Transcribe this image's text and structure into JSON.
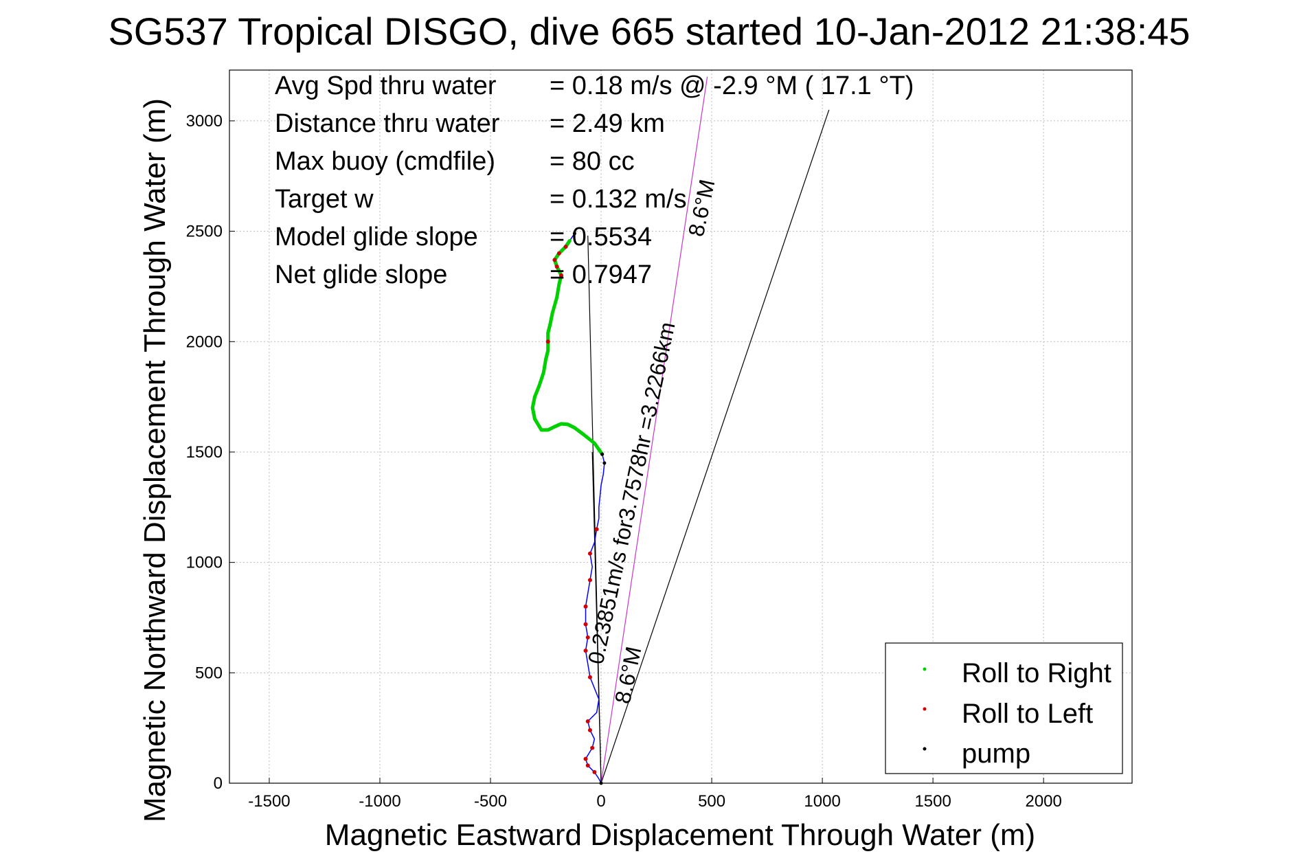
{
  "chart_data": {
    "type": "scatter",
    "title": "SG537 Tropical DISGO, dive 665 started 10-Jan-2012 21:38:45",
    "xlabel": "Magnetic Eastward Displacement Through Water (m)",
    "ylabel": "Magnetic Northward Displacement Through Water (m)",
    "xlim": [
      -1680,
      2400
    ],
    "ylim": [
      0,
      3230
    ],
    "xticks": [
      -1500,
      -1000,
      -500,
      0,
      500,
      1000,
      1500,
      2000
    ],
    "yticks": [
      0,
      500,
      1000,
      1500,
      2000,
      2500,
      3000
    ],
    "grid": true,
    "legend_position": "bottom-right",
    "colors": {
      "roll_right": "#00d000",
      "roll_left": "#d00000",
      "pump": "#000000",
      "track": "#0000ff",
      "heading_line": "#cc33cc",
      "reference_line": "#000000"
    },
    "summary_stats": [
      {
        "label": "Avg Spd thru water",
        "value": "=  0.18 m/s @  -2.9 °M ( 17.1 °T)"
      },
      {
        "label": "Distance thru water",
        "value": "=  2.49 km"
      },
      {
        "label": "Max buoy (cmdfile)",
        "value": "= 80 cc"
      },
      {
        "label": "Target w",
        "value": "= 0.132 m/s"
      },
      {
        "label": "Model glide slope",
        "value": "= 0.5534"
      },
      {
        "label": "Net glide slope",
        "value": "= 0.7947"
      }
    ],
    "annotations": {
      "vector_text": "0.23851m/s for3.7578hr =3.2266km",
      "heading_low": "8.6°M",
      "heading_high": "8.6°M"
    },
    "legend": [
      {
        "label": "Roll to Right",
        "color": "#00d000"
      },
      {
        "label": "Roll to Left",
        "color": "#d00000"
      },
      {
        "label": "pump",
        "color": "#000000"
      }
    ],
    "series": [
      {
        "name": "track",
        "points": [
          [
            0,
            0
          ],
          [
            -10,
            20
          ],
          [
            -30,
            50
          ],
          [
            -60,
            80
          ],
          [
            -70,
            110
          ],
          [
            -40,
            160
          ],
          [
            -30,
            200
          ],
          [
            -50,
            240
          ],
          [
            -60,
            280
          ],
          [
            -20,
            320
          ],
          [
            -10,
            380
          ],
          [
            -30,
            430
          ],
          [
            -50,
            480
          ],
          [
            -60,
            540
          ],
          [
            -70,
            600
          ],
          [
            -60,
            660
          ],
          [
            -70,
            720
          ],
          [
            -70,
            800
          ],
          [
            -60,
            860
          ],
          [
            -50,
            920
          ],
          [
            -40,
            980
          ],
          [
            -50,
            1040
          ],
          [
            -30,
            1090
          ],
          [
            -20,
            1150
          ],
          [
            -10,
            1200
          ],
          [
            -10,
            1250
          ],
          [
            -5,
            1300
          ],
          [
            0,
            1350
          ],
          [
            10,
            1400
          ],
          [
            15,
            1450
          ],
          [
            5,
            1490
          ],
          [
            -30,
            1540
          ],
          [
            -80,
            1580
          ],
          [
            -120,
            1610
          ],
          [
            -150,
            1625
          ],
          [
            -180,
            1628
          ],
          [
            -210,
            1615
          ],
          [
            -240,
            1600
          ],
          [
            -270,
            1600
          ],
          [
            -300,
            1650
          ],
          [
            -310,
            1700
          ],
          [
            -300,
            1750
          ],
          [
            -280,
            1800
          ],
          [
            -260,
            1860
          ],
          [
            -250,
            1920
          ],
          [
            -240,
            1960
          ],
          [
            -240,
            2000
          ],
          [
            -240,
            2040
          ],
          [
            -230,
            2080
          ],
          [
            -220,
            2130
          ],
          [
            -200,
            2200
          ],
          [
            -190,
            2260
          ],
          [
            -180,
            2300
          ],
          [
            -200,
            2340
          ],
          [
            -210,
            2370
          ],
          [
            -190,
            2400
          ],
          [
            -160,
            2430
          ],
          [
            -140,
            2460
          ],
          [
            -120,
            2490
          ]
        ]
      },
      {
        "name": "Roll to Right",
        "ranges": [
          [
            30,
            57
          ]
        ]
      },
      {
        "name": "Roll to Left",
        "points": [
          [
            -30,
            50
          ],
          [
            -60,
            80
          ],
          [
            -70,
            110
          ],
          [
            -40,
            160
          ],
          [
            -50,
            240
          ],
          [
            -60,
            280
          ],
          [
            -50,
            480
          ],
          [
            -70,
            600
          ],
          [
            -60,
            660
          ],
          [
            -70,
            720
          ],
          [
            -70,
            800
          ],
          [
            -50,
            920
          ],
          [
            -50,
            1040
          ],
          [
            -20,
            1150
          ],
          [
            -240,
            2000
          ],
          [
            -180,
            2300
          ],
          [
            -200,
            2340
          ],
          [
            -210,
            2370
          ],
          [
            -190,
            2400
          ],
          [
            -160,
            2430
          ]
        ]
      },
      {
        "name": "pump",
        "points": [
          [
            0,
            0
          ],
          [
            15,
            1450
          ],
          [
            5,
            1490
          ],
          [
            -120,
            2490
          ]
        ]
      }
    ],
    "lines": [
      {
        "name": "net_displacement",
        "from": [
          0,
          0
        ],
        "to": [
          -40,
          1500
        ]
      },
      {
        "name": "heading_low",
        "from": [
          0,
          0
        ],
        "to": [
          -60,
          2480
        ]
      },
      {
        "name": "reference_ray",
        "from": [
          0,
          0
        ],
        "to": [
          1030,
          3050
        ]
      },
      {
        "name": "heading_vector",
        "from": [
          0,
          0
        ],
        "to": [
          480,
          3200
        ]
      }
    ]
  }
}
